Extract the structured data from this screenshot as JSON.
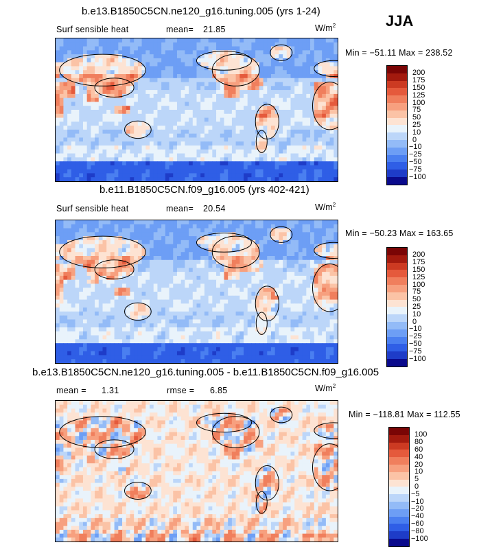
{
  "season": "JJA",
  "units_base": "W/m",
  "units_exp": "2",
  "panels": [
    {
      "title": "b.e13.B1850C5CN.ne120_g16.tuning.005 (yrs 1-24)",
      "variable": "Surf sensible heat",
      "stat_label": "mean=",
      "stat_value": "21.85",
      "minmax": "Min = −51.11  Max = 238.52"
    },
    {
      "title": "b.e11.B1850C5CN.f09_g16.005 (yrs 402-421)",
      "variable": "Surf sensible heat",
      "stat_label": "mean=",
      "stat_value": "20.54",
      "minmax": "Min = −50.23  Max = 163.65"
    },
    {
      "title": "b.e13.B1850C5CN.ne120_g16.tuning.005 - b.e11.B1850C5CN.f09_g16.005",
      "mean_label": "mean =",
      "mean_value": "1.31",
      "rmse_label": "rmse =",
      "rmse_value": "6.85",
      "minmax": "Min = −118.81  Max = 112.55"
    }
  ],
  "chart_data": [
    {
      "type": "heatmap",
      "title": "b.e13.B1850C5CN.ne120_g16.tuning.005 (yrs 1-24)",
      "variable": "Surf sensible heat",
      "units": "W/m2",
      "mean": 21.85,
      "min": -51.11,
      "max": 238.52,
      "levels": [
        -100,
        -75,
        -50,
        -25,
        -10,
        0,
        10,
        25,
        50,
        75,
        100,
        125,
        150,
        175,
        200
      ],
      "colors": [
        "#0a0a8c",
        "#1e3cc8",
        "#2f5ee6",
        "#4a7ff0",
        "#6d9ef5",
        "#93bbf7",
        "#bcd6f9",
        "#e9f3fb",
        "#fde3d3",
        "#fbc3a6",
        "#f7a07f",
        "#f07f5d",
        "#e55a3c",
        "#cc3a22",
        "#a31a0e",
        "#7a0505"
      ]
    },
    {
      "type": "heatmap",
      "title": "b.e11.B1850C5CN.f09_g16.005 (yrs 402-421)",
      "variable": "Surf sensible heat",
      "units": "W/m2",
      "mean": 20.54,
      "min": -50.23,
      "max": 163.65,
      "levels": [
        -100,
        -75,
        -50,
        -25,
        -10,
        0,
        10,
        25,
        50,
        75,
        100,
        125,
        150,
        175,
        200
      ],
      "colors": [
        "#0a0a8c",
        "#1e3cc8",
        "#2f5ee6",
        "#4a7ff0",
        "#6d9ef5",
        "#93bbf7",
        "#bcd6f9",
        "#e9f3fb",
        "#fde3d3",
        "#fbc3a6",
        "#f7a07f",
        "#f07f5d",
        "#e55a3c",
        "#cc3a22",
        "#a31a0e",
        "#7a0505"
      ]
    },
    {
      "type": "heatmap",
      "title": "b.e13.B1850C5CN.ne120_g16.tuning.005 - b.e11.B1850C5CN.f09_g16.005",
      "units": "W/m2",
      "mean": 1.31,
      "rmse": 6.85,
      "min": -118.81,
      "max": 112.55,
      "levels": [
        -100,
        -80,
        -60,
        -40,
        -20,
        -10,
        -5,
        0,
        5,
        10,
        20,
        40,
        60,
        80,
        100
      ],
      "colors": [
        "#0a0a8c",
        "#1e3cc8",
        "#2f5ee6",
        "#4a7ff0",
        "#6d9ef5",
        "#93bbf7",
        "#bcd6f9",
        "#e9f3fb",
        "#fde3d3",
        "#fbc3a6",
        "#f7a07f",
        "#f07f5d",
        "#e55a3c",
        "#cc3a22",
        "#a31a0e",
        "#7a0505"
      ]
    }
  ]
}
